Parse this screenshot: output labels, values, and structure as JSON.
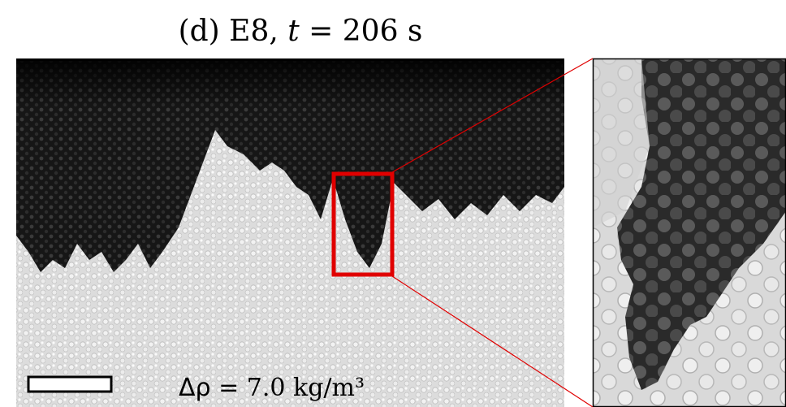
{
  "figure": {
    "title": {
      "label": "(d) E8, ",
      "variable": "t",
      "rest": " = 206 s"
    },
    "annotation": {
      "symbol": "Δρ",
      "rest": " = 7.0 kg/m³"
    }
  }
}
